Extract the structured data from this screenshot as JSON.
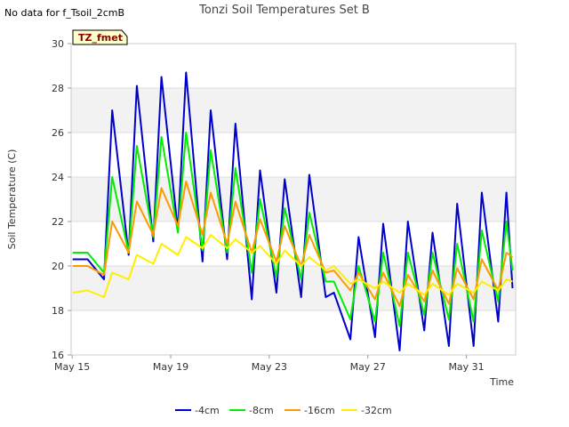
{
  "header": {
    "title": "Tonzi Soil Temperatures Set B",
    "no_data_note": "No data for f_Tsoil_2cmB",
    "tag": "TZ_fmet"
  },
  "colors": {
    "band": "#f2f2f2",
    "grid": "#dddddd",
    "tag_fill": "#ffffcc",
    "tag_text": "#8b0000"
  },
  "chart_data": {
    "type": "line",
    "title": "Tonzi Soil Temperatures Set B",
    "xlabel": "Time",
    "ylabel": "Soil Temperature (C)",
    "ylim": [
      16,
      30
    ],
    "xlim": [
      "2024-05-14T23:00",
      "2024-06-02T00:00"
    ],
    "x_ticks": [
      {
        "date": "2024-05-15",
        "label": "May 15"
      },
      {
        "date": "2024-05-19",
        "label": "May 19"
      },
      {
        "date": "2024-05-23",
        "label": "May 23"
      },
      {
        "date": "2024-05-27",
        "label": "May 27"
      },
      {
        "date": "2024-05-31",
        "label": "May 31"
      }
    ],
    "y_ticks": [
      16,
      18,
      20,
      22,
      24,
      26,
      28,
      30
    ],
    "grid": true,
    "legend_position": "bottom",
    "series": [
      {
        "name": "-4cm",
        "color": "#0000cc",
        "days": [
          "05-15",
          "05-16",
          "05-17",
          "05-18",
          "05-19",
          "05-20",
          "05-21",
          "05-22",
          "05-23",
          "05-24",
          "05-25",
          "05-26",
          "05-27",
          "05-28",
          "05-29",
          "05-30",
          "05-31",
          "06-01"
        ],
        "mins": [
          20.3,
          19.4,
          20.5,
          21.1,
          21.6,
          20.2,
          20.3,
          18.5,
          18.8,
          18.6,
          18.6,
          16.7,
          16.8,
          16.2,
          17.1,
          16.4,
          16.4,
          17.5
        ],
        "maxs": [
          20.3,
          27.0,
          28.1,
          28.5,
          28.7,
          27.0,
          26.4,
          24.3,
          23.9,
          24.1,
          18.8,
          21.3,
          21.9,
          22.0,
          21.5,
          22.8,
          23.3,
          23.3
        ],
        "end": 19.0
      },
      {
        "name": "-8cm",
        "color": "#00ee00",
        "days": [
          "05-15",
          "05-16",
          "05-17",
          "05-18",
          "05-19",
          "05-20",
          "05-21",
          "05-22",
          "05-23",
          "05-24",
          "05-25",
          "05-26",
          "05-27",
          "05-28",
          "05-29",
          "05-30",
          "05-31",
          "06-01"
        ],
        "mins": [
          20.6,
          19.7,
          20.6,
          21.3,
          21.5,
          20.7,
          20.6,
          19.7,
          19.5,
          19.4,
          19.3,
          17.6,
          17.5,
          17.3,
          17.8,
          17.6,
          17.5,
          18.4
        ],
        "maxs": [
          20.6,
          24.0,
          25.4,
          25.8,
          26.0,
          25.2,
          24.4,
          23.0,
          22.6,
          22.4,
          19.3,
          20.0,
          20.6,
          20.6,
          20.6,
          21.0,
          21.6,
          22.0
        ],
        "end": 19.8
      },
      {
        "name": "-16cm",
        "color": "#ff9900",
        "days": [
          "05-15",
          "05-16",
          "05-17",
          "05-18",
          "05-19",
          "05-20",
          "05-21",
          "05-22",
          "05-23",
          "05-24",
          "05-25",
          "05-26",
          "05-27",
          "05-28",
          "05-29",
          "05-30",
          "05-31",
          "06-01"
        ],
        "mins": [
          20.0,
          19.6,
          20.6,
          21.4,
          21.8,
          21.4,
          21.0,
          20.6,
          20.2,
          20.0,
          19.7,
          18.9,
          18.5,
          18.2,
          18.4,
          18.3,
          18.5,
          18.9
        ],
        "maxs": [
          20.0,
          22.0,
          22.9,
          23.5,
          23.8,
          23.3,
          22.9,
          22.1,
          21.8,
          21.4,
          19.8,
          19.7,
          19.7,
          19.6,
          19.8,
          19.9,
          20.3,
          20.6
        ],
        "end": 20.4
      },
      {
        "name": "-32cm",
        "color": "#ffee00",
        "days": [
          "05-15",
          "05-16",
          "05-17",
          "05-18",
          "05-19",
          "05-20",
          "05-21",
          "05-22",
          "05-23",
          "05-24",
          "05-25",
          "05-26",
          "05-27",
          "05-28",
          "05-29",
          "05-30",
          "05-31",
          "06-01"
        ],
        "mins": [
          18.8,
          18.6,
          19.4,
          20.1,
          20.5,
          20.8,
          20.8,
          20.6,
          20.1,
          20.0,
          19.8,
          19.2,
          19.0,
          18.8,
          18.7,
          18.7,
          18.8,
          18.9
        ],
        "maxs": [
          18.9,
          19.7,
          20.5,
          21.0,
          21.3,
          21.4,
          21.2,
          20.9,
          20.7,
          20.4,
          20.0,
          19.4,
          19.3,
          19.2,
          19.2,
          19.2,
          19.3,
          19.4
        ],
        "end": 19.3
      }
    ]
  }
}
